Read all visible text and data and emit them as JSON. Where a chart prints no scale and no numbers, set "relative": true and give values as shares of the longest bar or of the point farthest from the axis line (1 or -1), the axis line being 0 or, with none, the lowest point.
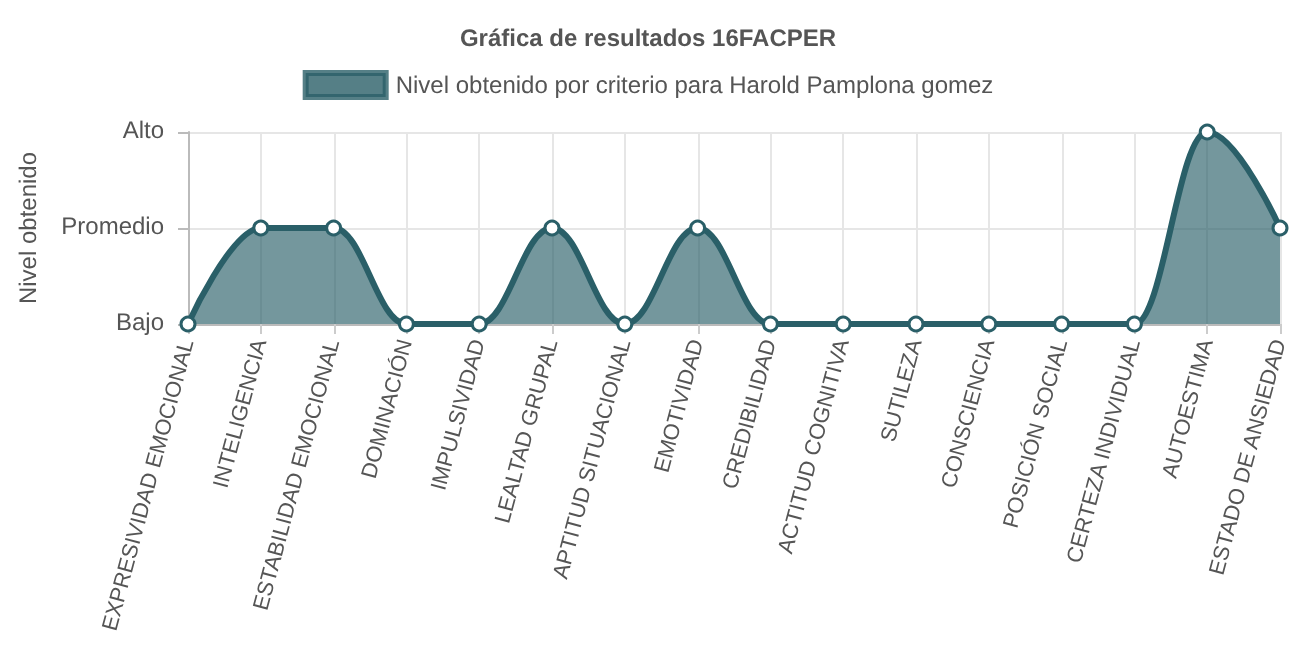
{
  "chart_data": {
    "type": "area",
    "title": "Gráfica de resultados 16FACPER",
    "ylabel": "Nivel obtenido",
    "categories": [
      "EXPRESIVIDAD EMOCIONAL",
      "INTELIGENCIA",
      "ESTABILIDAD EMOCIONAL",
      "DOMINACIÓN",
      "IMPULSIVIDAD",
      "LEALTAD GRUPAL",
      "APTITUD SITUACIONAL",
      "EMOTIVIDAD",
      "CREDIBILIDAD",
      "ACTITUD COGNITIVA",
      "SUTILEZA",
      "CONSCIENCIA",
      "POSICIÓN SOCIAL",
      "CERTEZA INDIVIDUAL",
      "AUTOESTIMA",
      "ESTADO DE ANSIEDAD"
    ],
    "relative": true,
    "annotations": [
      "Alto",
      "Promedio",
      "Bajo"
    ],
    "series": [
      {
        "name": "Nivel obtenido por criterio para Harold Pamplona gomez",
        "color": "#2a5f68",
        "values": [
          0,
          0.5,
          0.5,
          0,
          0,
          0.5,
          0,
          0.5,
          0,
          0,
          0,
          0,
          0,
          0,
          1,
          0.5
        ]
      }
    ],
    "grid": true,
    "legend": "top",
    "marker": "circle",
    "line_style": "solid"
  }
}
